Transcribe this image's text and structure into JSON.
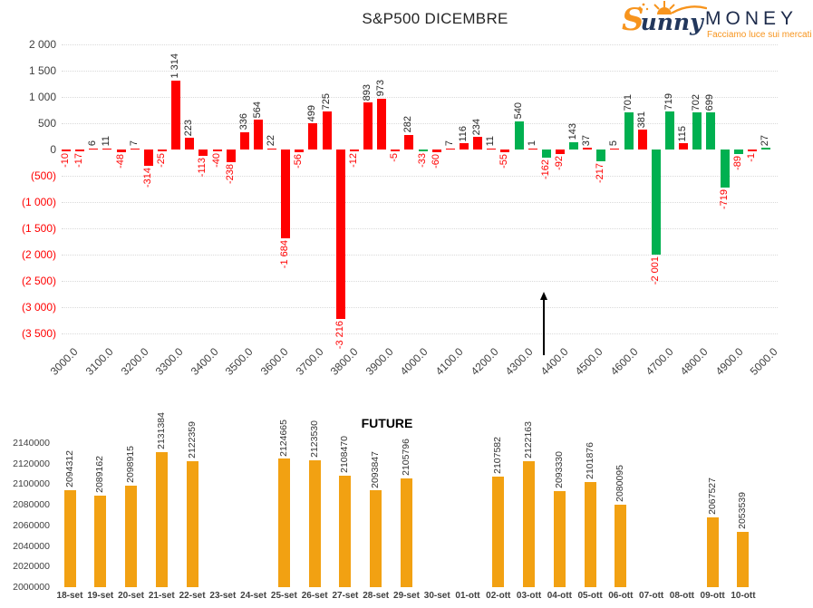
{
  "brand": {
    "script_initial": "S",
    "script_rest": "unny",
    "caps_word": "MONEY",
    "tagline": "Facciamo luce sui mercati",
    "orange": "#F7941D",
    "navy": "#1D2B4B"
  },
  "chart_data": [
    {
      "type": "bar",
      "title": "S&P500 DICEMBRE",
      "ylim": [
        -3500,
        2000
      ],
      "grid": "dotted-horizontal",
      "y_tick_values": [
        2000,
        1500,
        1000,
        500,
        0,
        -500,
        -1000,
        -1500,
        -2000,
        -2500,
        -3000,
        -3500
      ],
      "y_tick_labels": [
        "2 000",
        "1 500",
        "1 000",
        "500",
        "0",
        "(500)",
        "(1 000)",
        "(1 500)",
        "(2 000)",
        "(2 500)",
        "(3 000)",
        "(3 500)"
      ],
      "x_tick_labels": [
        "3000.0",
        "3100.0",
        "3200.0",
        "3300.0",
        "3400.0",
        "3500.0",
        "3600.0",
        "3700.0",
        "3800.0",
        "3900.0",
        "4000.0",
        "4100.0",
        "4200.0",
        "4300.0",
        "4400.0",
        "4500.0",
        "4600.0",
        "4700.0",
        "4800.0",
        "4900.0",
        "5000.0"
      ],
      "series_colors": {
        "put": "#FF0000",
        "call": "#00B050"
      },
      "label_colors": {
        "positive": "#262626",
        "negative": "#FF0000"
      },
      "annotation": {
        "type": "arrow-up",
        "near_x_label": "4400.0"
      },
      "bars": [
        {
          "value": -10,
          "label": "-10",
          "series": "put"
        },
        {
          "value": -17,
          "label": "-17",
          "series": "put"
        },
        {
          "value": 6,
          "label": "6",
          "series": "put"
        },
        {
          "value": 11,
          "label": "11",
          "series": "put"
        },
        {
          "value": -48,
          "label": "-48",
          "series": "put"
        },
        {
          "value": 7,
          "label": "7",
          "series": "put"
        },
        {
          "value": -314,
          "label": "-314",
          "series": "put"
        },
        {
          "value": -25,
          "label": "-25",
          "series": "put"
        },
        {
          "value": 1314,
          "label": "1 314",
          "series": "put"
        },
        {
          "value": 223,
          "label": "223",
          "series": "put"
        },
        {
          "value": -113,
          "label": "-113",
          "series": "put"
        },
        {
          "value": -40,
          "label": "-40",
          "series": "put"
        },
        {
          "value": -238,
          "label": "-238",
          "series": "put"
        },
        {
          "value": 336,
          "label": "336",
          "series": "put"
        },
        {
          "value": 564,
          "label": "564",
          "series": "put"
        },
        {
          "value": 22,
          "label": "22",
          "series": "put"
        },
        {
          "value": -1684,
          "label": "-1 684",
          "series": "put"
        },
        {
          "value": -56,
          "label": "-56",
          "series": "put"
        },
        {
          "value": 499,
          "label": "499",
          "series": "put"
        },
        {
          "value": 725,
          "label": "725",
          "series": "put"
        },
        {
          "value": -3216,
          "label": "-3 216",
          "series": "put"
        },
        {
          "value": -12,
          "label": "-12",
          "series": "put"
        },
        {
          "value": 893,
          "label": "893",
          "series": "put"
        },
        {
          "value": 973,
          "label": "973",
          "series": "put"
        },
        {
          "value": -5,
          "label": "-5",
          "series": "put"
        },
        {
          "value": 282,
          "label": "282",
          "series": "put"
        },
        {
          "value": -33,
          "label": "-33",
          "series": "call"
        },
        {
          "value": -60,
          "label": "-60",
          "series": "put"
        },
        {
          "value": 7,
          "label": "7",
          "series": "put"
        },
        {
          "value": 116,
          "label": "116",
          "series": "put"
        },
        {
          "value": 234,
          "label": "234",
          "series": "put"
        },
        {
          "value": 11,
          "label": "11",
          "series": "put"
        },
        {
          "value": -55,
          "label": "-55",
          "series": "put"
        },
        {
          "value": 540,
          "label": "540",
          "series": "call"
        },
        {
          "value": 1,
          "label": "1",
          "series": "put"
        },
        {
          "value": -162,
          "label": "-162",
          "series": "call"
        },
        {
          "value": -92,
          "label": "-92",
          "series": "put"
        },
        {
          "value": 143,
          "label": "143",
          "series": "call"
        },
        {
          "value": 37,
          "label": "37",
          "series": "put"
        },
        {
          "value": -217,
          "label": "-217",
          "series": "call"
        },
        {
          "value": 5,
          "label": "5",
          "series": "put"
        },
        {
          "value": 701,
          "label": "701",
          "series": "call"
        },
        {
          "value": 381,
          "label": "381",
          "series": "put"
        },
        {
          "value": -2001,
          "label": "-2 001",
          "series": "call"
        },
        {
          "value": 719,
          "label": "719",
          "series": "call"
        },
        {
          "value": 115,
          "label": "115",
          "series": "put"
        },
        {
          "value": 702,
          "label": "702",
          "series": "call"
        },
        {
          "value": 699,
          "label": "699",
          "series": "call"
        },
        {
          "value": -719,
          "label": "-719",
          "series": "call"
        },
        {
          "value": -89,
          "label": "-89",
          "series": "call"
        },
        {
          "value": -1,
          "label": "-1",
          "series": "put"
        },
        {
          "value": 27,
          "label": "27",
          "series": "call"
        }
      ]
    },
    {
      "type": "bar",
      "title": "FUTURE",
      "ylim": [
        2000000,
        2140000
      ],
      "grid": "none",
      "bar_color": "#F2A112",
      "label_color": "#333333",
      "y_tick_labels": [
        "2140000",
        "2120000",
        "2100000",
        "2080000",
        "2060000",
        "2040000",
        "2020000",
        "2000000"
      ],
      "categories": [
        "18-set",
        "19-set",
        "20-set",
        "21-set",
        "22-set",
        "23-set",
        "24-set",
        "25-set",
        "26-set",
        "27-set",
        "28-set",
        "29-set",
        "30-set",
        "01-ott",
        "02-ott",
        "03-ott",
        "04-ott",
        "05-ott",
        "06-ott",
        "07-ott",
        "08-ott",
        "09-ott",
        "10-ott"
      ],
      "values": [
        2094312,
        2089162,
        2098915,
        2131384,
        2122359,
        null,
        null,
        2124665,
        2123530,
        2108470,
        2093847,
        2105796,
        null,
        null,
        2107582,
        2122163,
        2093330,
        2101876,
        2080095,
        null,
        null,
        2067527,
        2053539
      ]
    }
  ]
}
